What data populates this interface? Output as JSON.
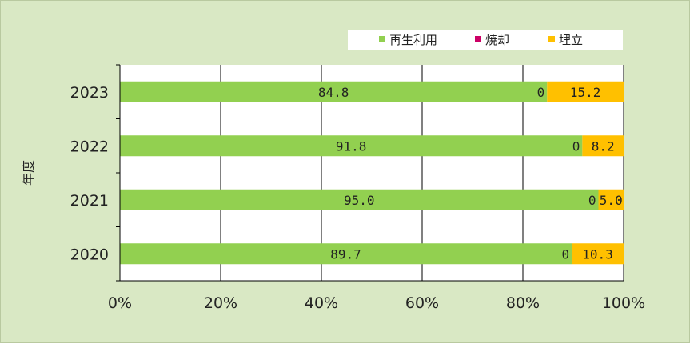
{
  "chart_data": {
    "type": "bar",
    "orientation": "horizontal",
    "stacked": true,
    "categories": [
      "2023",
      "2022",
      "2021",
      "2020"
    ],
    "series": [
      {
        "name": "再生利用",
        "values": [
          84.8,
          91.8,
          95.0,
          89.7
        ],
        "labels": [
          "84.8",
          "91.8",
          "95.0",
          "89.7"
        ],
        "color": "#92d050"
      },
      {
        "name": "焼却",
        "values": [
          0,
          0,
          0,
          0
        ],
        "labels": [
          "0",
          "0",
          "0",
          "0"
        ],
        "color": "#cc0066"
      },
      {
        "name": "埋立",
        "values": [
          15.2,
          8.2,
          5.0,
          10.3
        ],
        "labels": [
          "15.2",
          "8.2",
          "5.0",
          "10.3"
        ],
        "color": "#ffc000"
      }
    ],
    "xlim": [
      0,
      100
    ],
    "xticks": [
      "0%",
      "20%",
      "40%",
      "60%",
      "80%",
      "100%"
    ],
    "ylabel": "年度",
    "legend_position": "top-right",
    "grid": {
      "vertical": true,
      "horizontal": false
    },
    "plot_background": "#ffffff",
    "chart_background": "#d9e8c4"
  }
}
